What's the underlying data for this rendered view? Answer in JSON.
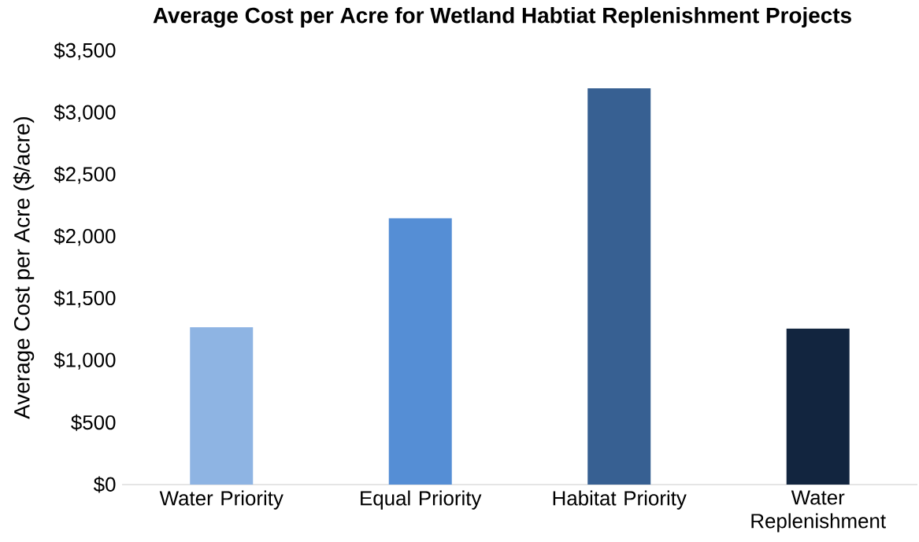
{
  "chart_data": {
    "type": "bar",
    "title": "Average Cost per Acre for Wetland Habtiat Replenishment Projects",
    "ylabel": "Average Cost per Acre ($/acre)",
    "categories": [
      "Water Priority",
      "Equal Priority",
      "Habitat Priority",
      "Water Replenishment"
    ],
    "values": [
      1270,
      2150,
      3200,
      1260
    ],
    "colors": [
      "#8eb4e3",
      "#558ed5",
      "#376092",
      "#12253f"
    ],
    "ylim": [
      0,
      3500
    ],
    "yticks": [
      {
        "value": 0,
        "label": "$0"
      },
      {
        "value": 500,
        "label": "$500"
      },
      {
        "value": 1000,
        "label": "$1,000"
      },
      {
        "value": 1500,
        "label": "$1,500"
      },
      {
        "value": 2000,
        "label": "$2,000"
      },
      {
        "value": 2500,
        "label": "$2,500"
      },
      {
        "value": 3000,
        "label": "$3,000"
      },
      {
        "value": 3500,
        "label": "$3,500"
      }
    ]
  }
}
